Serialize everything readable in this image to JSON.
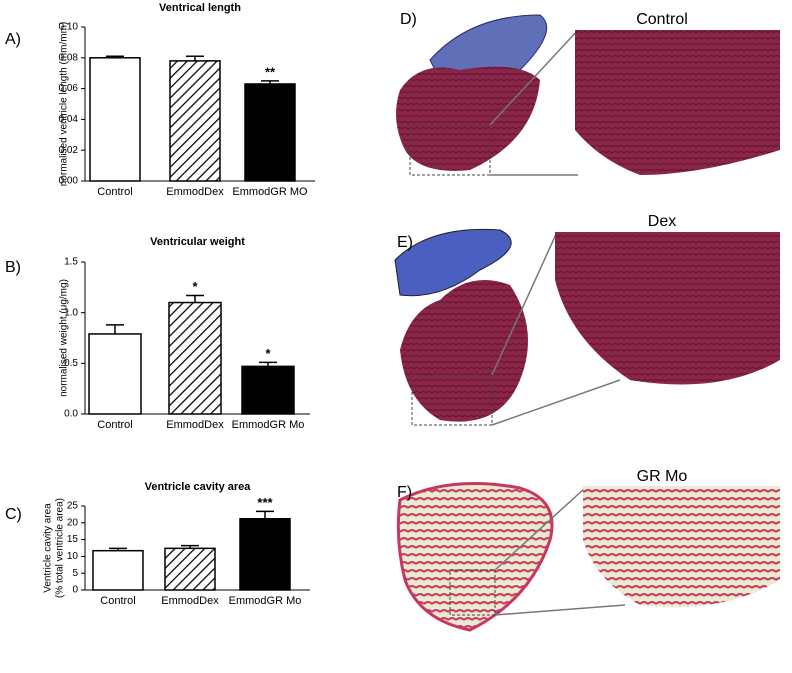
{
  "chart_data": [
    {
      "type": "bar",
      "panel": "A)",
      "title": "Ventrical length",
      "ylabel": [
        "normalised ventricle length (mm/mm)"
      ],
      "categories": [
        "Control",
        "EmmodDex",
        "EmmodGR MO"
      ],
      "values": [
        0.08,
        0.078,
        0.063
      ],
      "errors": [
        0.001,
        0.003,
        0.002
      ],
      "significance": [
        null,
        null,
        "**"
      ],
      "colors": [
        "#ffffff",
        "hatched",
        "#000000"
      ],
      "ylim": [
        0,
        0.1
      ],
      "yticks": [
        {
          "value": 0,
          "label": "0.00"
        },
        {
          "value": 0.02,
          "label": "0.02"
        },
        {
          "value": 0.04,
          "label": "0.04"
        },
        {
          "value": 0.06,
          "label": "0.06"
        },
        {
          "value": 0.08,
          "label": "0.08"
        },
        {
          "value": 0.1,
          "label": "0.10"
        }
      ]
    },
    {
      "type": "bar",
      "panel": "B)",
      "title": "Ventricular weight",
      "ylabel": [
        "normalised weight (ug/mg)"
      ],
      "categories": [
        "Control",
        "EmmodDex",
        "EmmodGR Mo"
      ],
      "values": [
        0.79,
        1.1,
        0.47
      ],
      "errors": [
        0.09,
        0.07,
        0.04
      ],
      "significance": [
        null,
        "*",
        "*"
      ],
      "colors": [
        "#ffffff",
        "hatched",
        "#000000"
      ],
      "ylim": [
        0,
        1.5
      ],
      "yticks": [
        {
          "value": 0,
          "label": "0.0"
        },
        0.5,
        {
          "value": 1,
          "label": "1.0"
        },
        1.5
      ]
    },
    {
      "type": "bar",
      "panel": "C)",
      "title": "Ventricle cavity area",
      "ylabel": [
        "Ventricle cavity area",
        "(% total ventricle area)"
      ],
      "categories": [
        "Control",
        "EmmodDex",
        "EmmodGR Mo"
      ],
      "values": [
        11.7,
        12.4,
        21.2
      ],
      "errors": [
        0.7,
        0.8,
        2.2
      ],
      "significance": [
        null,
        null,
        "***"
      ],
      "colors": [
        "#ffffff",
        "hatched",
        "#000000"
      ],
      "ylim": [
        0,
        25
      ],
      "yticks": [
        0,
        5,
        10,
        15,
        20,
        25
      ]
    }
  ],
  "images": [
    {
      "label": "D)",
      "caption": "Control"
    },
    {
      "label": "E)",
      "caption": "Dex"
    },
    {
      "label": "F)",
      "caption": "GR Mo"
    }
  ]
}
